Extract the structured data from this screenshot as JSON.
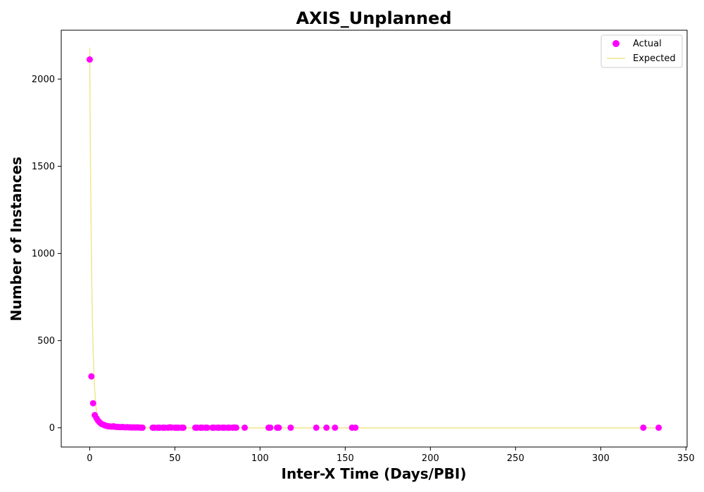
{
  "chart_data": {
    "type": "scatter",
    "title": "AXIS_Unplanned",
    "xlabel": "Inter-X Time (Days/PBI)",
    "ylabel": "Number of Instances",
    "xlim": [
      -16.7,
      350.7
    ],
    "ylim": [
      -110,
      2280
    ],
    "xticks": [
      0,
      50,
      100,
      150,
      200,
      250,
      300,
      350
    ],
    "yticks": [
      0,
      500,
      1000,
      1500,
      2000
    ],
    "legend_position": "top-right",
    "grid": false,
    "series": [
      {
        "name": "Actual",
        "kind": "scatter",
        "color": "#ff00ff",
        "points": [
          [
            0,
            2112
          ],
          [
            1,
            295
          ],
          [
            2,
            141
          ],
          [
            3,
            73
          ],
          [
            4,
            55
          ],
          [
            5,
            40
          ],
          [
            6,
            30
          ],
          [
            7,
            22
          ],
          [
            8,
            18
          ],
          [
            9,
            14
          ],
          [
            10,
            11
          ],
          [
            11,
            9
          ],
          [
            12,
            8
          ],
          [
            13,
            7
          ],
          [
            14,
            9
          ],
          [
            15,
            6
          ],
          [
            16,
            5
          ],
          [
            17,
            5
          ],
          [
            18,
            4
          ],
          [
            19,
            5
          ],
          [
            20,
            4
          ],
          [
            21,
            3
          ],
          [
            22,
            4
          ],
          [
            23,
            3
          ],
          [
            24,
            3
          ],
          [
            25,
            2
          ],
          [
            26,
            3
          ],
          [
            27,
            2
          ],
          [
            28,
            3
          ],
          [
            29,
            2
          ],
          [
            30,
            1
          ],
          [
            31,
            1
          ],
          [
            37,
            1
          ],
          [
            38,
            1
          ],
          [
            40,
            1
          ],
          [
            41,
            1
          ],
          [
            43,
            1
          ],
          [
            44,
            1
          ],
          [
            46,
            1
          ],
          [
            47,
            3
          ],
          [
            48,
            2
          ],
          [
            50,
            1
          ],
          [
            51,
            1
          ],
          [
            52,
            1
          ],
          [
            54,
            1
          ],
          [
            55,
            1
          ],
          [
            62,
            1
          ],
          [
            63,
            1
          ],
          [
            65,
            1
          ],
          [
            66,
            1
          ],
          [
            68,
            1
          ],
          [
            69,
            1
          ],
          [
            72,
            1
          ],
          [
            73,
            1
          ],
          [
            75,
            1
          ],
          [
            76,
            1
          ],
          [
            78,
            1
          ],
          [
            79,
            1
          ],
          [
            81,
            1
          ],
          [
            82,
            1
          ],
          [
            84,
            1
          ],
          [
            85,
            2
          ],
          [
            86,
            1
          ],
          [
            91,
            1
          ],
          [
            105,
            1
          ],
          [
            106,
            1
          ],
          [
            110,
            1
          ],
          [
            111,
            1
          ],
          [
            118,
            1
          ],
          [
            133,
            1
          ],
          [
            139,
            1
          ],
          [
            144,
            1
          ],
          [
            154,
            1
          ],
          [
            156,
            1
          ],
          [
            325,
            1
          ],
          [
            334,
            1
          ]
        ]
      },
      {
        "name": "Expected",
        "kind": "line",
        "color": "#f0e68c",
        "model": "exponential",
        "amplitude": 2180,
        "rate": 0.78,
        "x_range": [
          0,
          334
        ]
      }
    ]
  }
}
